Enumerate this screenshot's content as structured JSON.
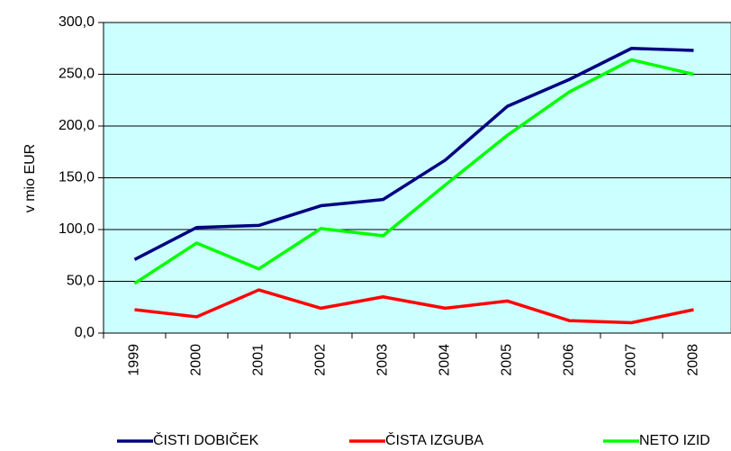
{
  "chart_data": {
    "type": "line",
    "ylabel": "v mio EUR",
    "categories": [
      "1999",
      "2000",
      "2001",
      "2002",
      "2003",
      "2004",
      "2005",
      "2006",
      "2007",
      "2008"
    ],
    "series": [
      {
        "name": "ČISTI DOBIČEK",
        "color": "#000080",
        "values": [
          71,
          102,
          104,
          123,
          129,
          167,
          219,
          245,
          275,
          273
        ]
      },
      {
        "name": "ČISTA IZGUBA",
        "color": "#ff0000",
        "values": [
          22.6,
          15.7,
          41.7,
          24,
          35,
          24,
          31,
          12,
          10,
          22.6
        ]
      },
      {
        "name": "NETO IZID",
        "color": "#00ff00",
        "values": [
          48,
          87,
          62,
          101,
          94,
          143,
          191,
          233,
          264,
          250
        ]
      }
    ],
    "ylim": [
      0,
      300
    ],
    "yticks": [
      {
        "value": 0,
        "label": "0,0"
      },
      {
        "value": 50,
        "label": "50,0"
      },
      {
        "value": 100,
        "label": "100,0"
      },
      {
        "value": 150,
        "label": "150,0"
      },
      {
        "value": 200,
        "label": "200,0"
      },
      {
        "value": 250,
        "label": "250,0"
      },
      {
        "value": 300,
        "label": "300,0"
      }
    ],
    "grid": true,
    "legend": "bottom",
    "background": "#ccffff"
  }
}
